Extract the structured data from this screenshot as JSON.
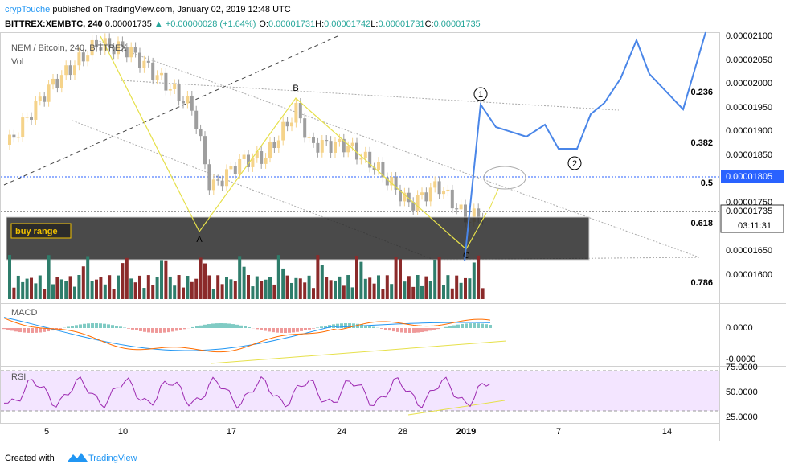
{
  "header": {
    "author": "crypTouche",
    "published": "published on TradingView.com, January 02, 2019 12:48 UTC",
    "symbol": "BITTREX:XEMBTC, 240",
    "last": "0.00001735",
    "change": "+0.00000028 (+1.64%)",
    "ohlc": [
      {
        "label": "O:",
        "value": "0.00001731"
      },
      {
        "label": "H:",
        "value": "0.00001742"
      },
      {
        "label": "L:",
        "value": "0.00001731"
      },
      {
        "label": "C:",
        "value": "0.00001735"
      }
    ]
  },
  "chart": {
    "legend": "NEM / Bitcoin, 240, BITTREX",
    "volume_label": "Vol",
    "buy_range": "buy range",
    "wave_labels": [
      "A",
      "B",
      "C"
    ],
    "projection_labels": [
      "1",
      "2"
    ],
    "price_axis": [
      "0.00002100",
      "0.00002050",
      "0.00002000",
      "0.00001950",
      "0.00001900",
      "0.00001850",
      "0.00001750",
      "0.00001650",
      "0.00001600"
    ],
    "highlight_price": "0.00001805",
    "current_price": "0.00001735",
    "countdown": "03:11:31",
    "fib_levels": [
      "0.236",
      "0.382",
      "0.5",
      "0.618",
      "0.786"
    ],
    "macd": {
      "title": "MACD",
      "axis": [
        "0.0000",
        "-0.0000"
      ]
    },
    "rsi": {
      "title": "RSI",
      "axis": [
        "75.0000",
        "50.0000",
        "25.0000"
      ]
    },
    "dates": [
      "5",
      "10",
      "17",
      "24",
      "28",
      "2019",
      "7",
      "14"
    ]
  },
  "footer": {
    "created_with": "Created with",
    "brand": "TradingView"
  }
}
